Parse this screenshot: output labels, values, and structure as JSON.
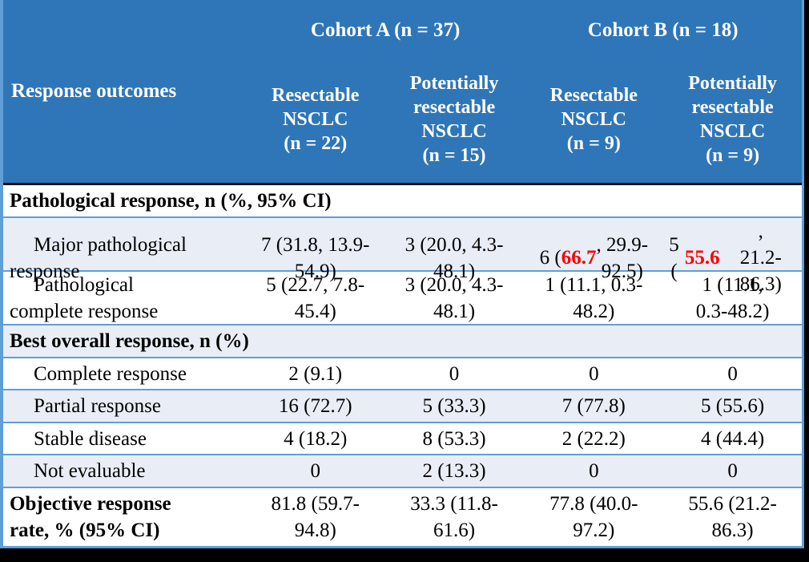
{
  "colors": {
    "header_bg": "#2F76B8",
    "band_bg": "#E9EDF6",
    "grid_line": "#5F9FD8",
    "header_divider": "#0B0B10",
    "highlight_red": "#FF0000",
    "header_text": "#FFFFFF",
    "body_text": "#000000",
    "shadow": "#000000"
  },
  "header": {
    "row_label": "Response outcomes",
    "cohorts": [
      {
        "label": "Cohort A (n = 37)"
      },
      {
        "label": "Cohort B (n = 18)"
      }
    ],
    "columns": [
      {
        "label": "Resectable\nNSCLC\n(n = 22)"
      },
      {
        "label": "Potentially\nresectable\nNSCLC\n(n = 15)"
      },
      {
        "label": "Resectable\nNSCLC\n(n = 9)"
      },
      {
        "label": "Potentially\nresectable\nNSCLC\n(n = 9)"
      }
    ]
  },
  "rows": [
    {
      "type": "section",
      "label": "Pathological response, n (%, 95% CI)"
    },
    {
      "type": "data",
      "label": "Major pathological\nresponse",
      "cells": [
        "7 (31.8, 13.9-\n54.9)",
        "3 (20.0, 4.3-\n48.1)",
        {
          "pre": "6 (",
          "red": "66.7",
          "post": ", 29.9-\n92.5)"
        },
        {
          "pre": "5 (",
          "red": "55.6",
          "post": ",\n21.2-86.3)"
        }
      ]
    },
    {
      "type": "data",
      "label": "Pathological\ncomplete response",
      "cells": [
        "5 (22.7, 7.8-\n45.4)",
        "3 (20.0, 4.3-\n48.1)",
        "1 (11.1, 0.3-\n48.2)",
        "1 (11.1,\n0.3-48.2)"
      ]
    },
    {
      "type": "section",
      "label": "Best overall response, n (%)"
    },
    {
      "type": "data",
      "label": "Complete response",
      "cells": [
        "2 (9.1)",
        "0",
        "0",
        "0"
      ]
    },
    {
      "type": "data",
      "label": "Partial response",
      "cells": [
        "16 (72.7)",
        "5 (33.3)",
        "7 (77.8)",
        "5 (55.6)"
      ]
    },
    {
      "type": "data",
      "label": "Stable disease",
      "cells": [
        "4 (18.2)",
        "8 (53.3)",
        "2 (22.2)",
        "4 (44.4)"
      ]
    },
    {
      "type": "data",
      "label": "Not evaluable",
      "cells": [
        "0",
        "2 (13.3)",
        "0",
        "0"
      ]
    },
    {
      "type": "data",
      "label": "Objective response\nrate, % (95% CI)",
      "cells": [
        "81.8 (59.7-\n94.8)",
        "33.3 (11.8-\n61.6)",
        "77.8 (40.0-\n97.2)",
        "55.6 (21.2-\n86.3)"
      ]
    }
  ]
}
